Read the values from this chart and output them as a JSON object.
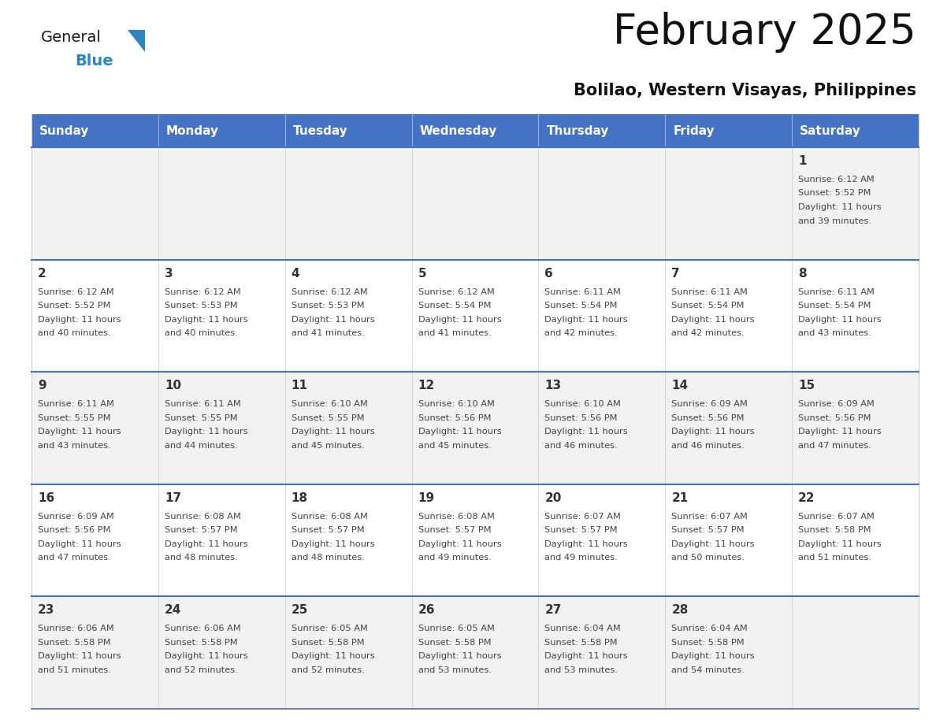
{
  "title": "February 2025",
  "subtitle": "Bolilao, Western Visayas, Philippines",
  "header_bg": "#4472C4",
  "header_text": "#FFFFFF",
  "day_names": [
    "Sunday",
    "Monday",
    "Tuesday",
    "Wednesday",
    "Thursday",
    "Friday",
    "Saturday"
  ],
  "row_bg_odd": "#F2F2F2",
  "row_bg_even": "#FFFFFF",
  "cell_border": "#4472C4",
  "day_number_color": "#333333",
  "info_text_color": "#444444",
  "logo_general_color": "#1a1a1a",
  "logo_blue_color": "#2E86C1",
  "calendar": [
    [
      null,
      null,
      null,
      null,
      null,
      null,
      {
        "day": 1,
        "sunrise": "6:12 AM",
        "sunset": "5:52 PM",
        "daylight": "11 hours and 39 minutes."
      }
    ],
    [
      {
        "day": 2,
        "sunrise": "6:12 AM",
        "sunset": "5:52 PM",
        "daylight": "11 hours and 40 minutes."
      },
      {
        "day": 3,
        "sunrise": "6:12 AM",
        "sunset": "5:53 PM",
        "daylight": "11 hours and 40 minutes."
      },
      {
        "day": 4,
        "sunrise": "6:12 AM",
        "sunset": "5:53 PM",
        "daylight": "11 hours and 41 minutes."
      },
      {
        "day": 5,
        "sunrise": "6:12 AM",
        "sunset": "5:54 PM",
        "daylight": "11 hours and 41 minutes."
      },
      {
        "day": 6,
        "sunrise": "6:11 AM",
        "sunset": "5:54 PM",
        "daylight": "11 hours and 42 minutes."
      },
      {
        "day": 7,
        "sunrise": "6:11 AM",
        "sunset": "5:54 PM",
        "daylight": "11 hours and 42 minutes."
      },
      {
        "day": 8,
        "sunrise": "6:11 AM",
        "sunset": "5:54 PM",
        "daylight": "11 hours and 43 minutes."
      }
    ],
    [
      {
        "day": 9,
        "sunrise": "6:11 AM",
        "sunset": "5:55 PM",
        "daylight": "11 hours and 43 minutes."
      },
      {
        "day": 10,
        "sunrise": "6:11 AM",
        "sunset": "5:55 PM",
        "daylight": "11 hours and 44 minutes."
      },
      {
        "day": 11,
        "sunrise": "6:10 AM",
        "sunset": "5:55 PM",
        "daylight": "11 hours and 45 minutes."
      },
      {
        "day": 12,
        "sunrise": "6:10 AM",
        "sunset": "5:56 PM",
        "daylight": "11 hours and 45 minutes."
      },
      {
        "day": 13,
        "sunrise": "6:10 AM",
        "sunset": "5:56 PM",
        "daylight": "11 hours and 46 minutes."
      },
      {
        "day": 14,
        "sunrise": "6:09 AM",
        "sunset": "5:56 PM",
        "daylight": "11 hours and 46 minutes."
      },
      {
        "day": 15,
        "sunrise": "6:09 AM",
        "sunset": "5:56 PM",
        "daylight": "11 hours and 47 minutes."
      }
    ],
    [
      {
        "day": 16,
        "sunrise": "6:09 AM",
        "sunset": "5:56 PM",
        "daylight": "11 hours and 47 minutes."
      },
      {
        "day": 17,
        "sunrise": "6:08 AM",
        "sunset": "5:57 PM",
        "daylight": "11 hours and 48 minutes."
      },
      {
        "day": 18,
        "sunrise": "6:08 AM",
        "sunset": "5:57 PM",
        "daylight": "11 hours and 48 minutes."
      },
      {
        "day": 19,
        "sunrise": "6:08 AM",
        "sunset": "5:57 PM",
        "daylight": "11 hours and 49 minutes."
      },
      {
        "day": 20,
        "sunrise": "6:07 AM",
        "sunset": "5:57 PM",
        "daylight": "11 hours and 49 minutes."
      },
      {
        "day": 21,
        "sunrise": "6:07 AM",
        "sunset": "5:57 PM",
        "daylight": "11 hours and 50 minutes."
      },
      {
        "day": 22,
        "sunrise": "6:07 AM",
        "sunset": "5:58 PM",
        "daylight": "11 hours and 51 minutes."
      }
    ],
    [
      {
        "day": 23,
        "sunrise": "6:06 AM",
        "sunset": "5:58 PM",
        "daylight": "11 hours and 51 minutes."
      },
      {
        "day": 24,
        "sunrise": "6:06 AM",
        "sunset": "5:58 PM",
        "daylight": "11 hours and 52 minutes."
      },
      {
        "day": 25,
        "sunrise": "6:05 AM",
        "sunset": "5:58 PM",
        "daylight": "11 hours and 52 minutes."
      },
      {
        "day": 26,
        "sunrise": "6:05 AM",
        "sunset": "5:58 PM",
        "daylight": "11 hours and 53 minutes."
      },
      {
        "day": 27,
        "sunrise": "6:04 AM",
        "sunset": "5:58 PM",
        "daylight": "11 hours and 53 minutes."
      },
      {
        "day": 28,
        "sunrise": "6:04 AM",
        "sunset": "5:58 PM",
        "daylight": "11 hours and 54 minutes."
      },
      null
    ]
  ],
  "fig_width": 11.88,
  "fig_height": 9.18,
  "dpi": 100
}
